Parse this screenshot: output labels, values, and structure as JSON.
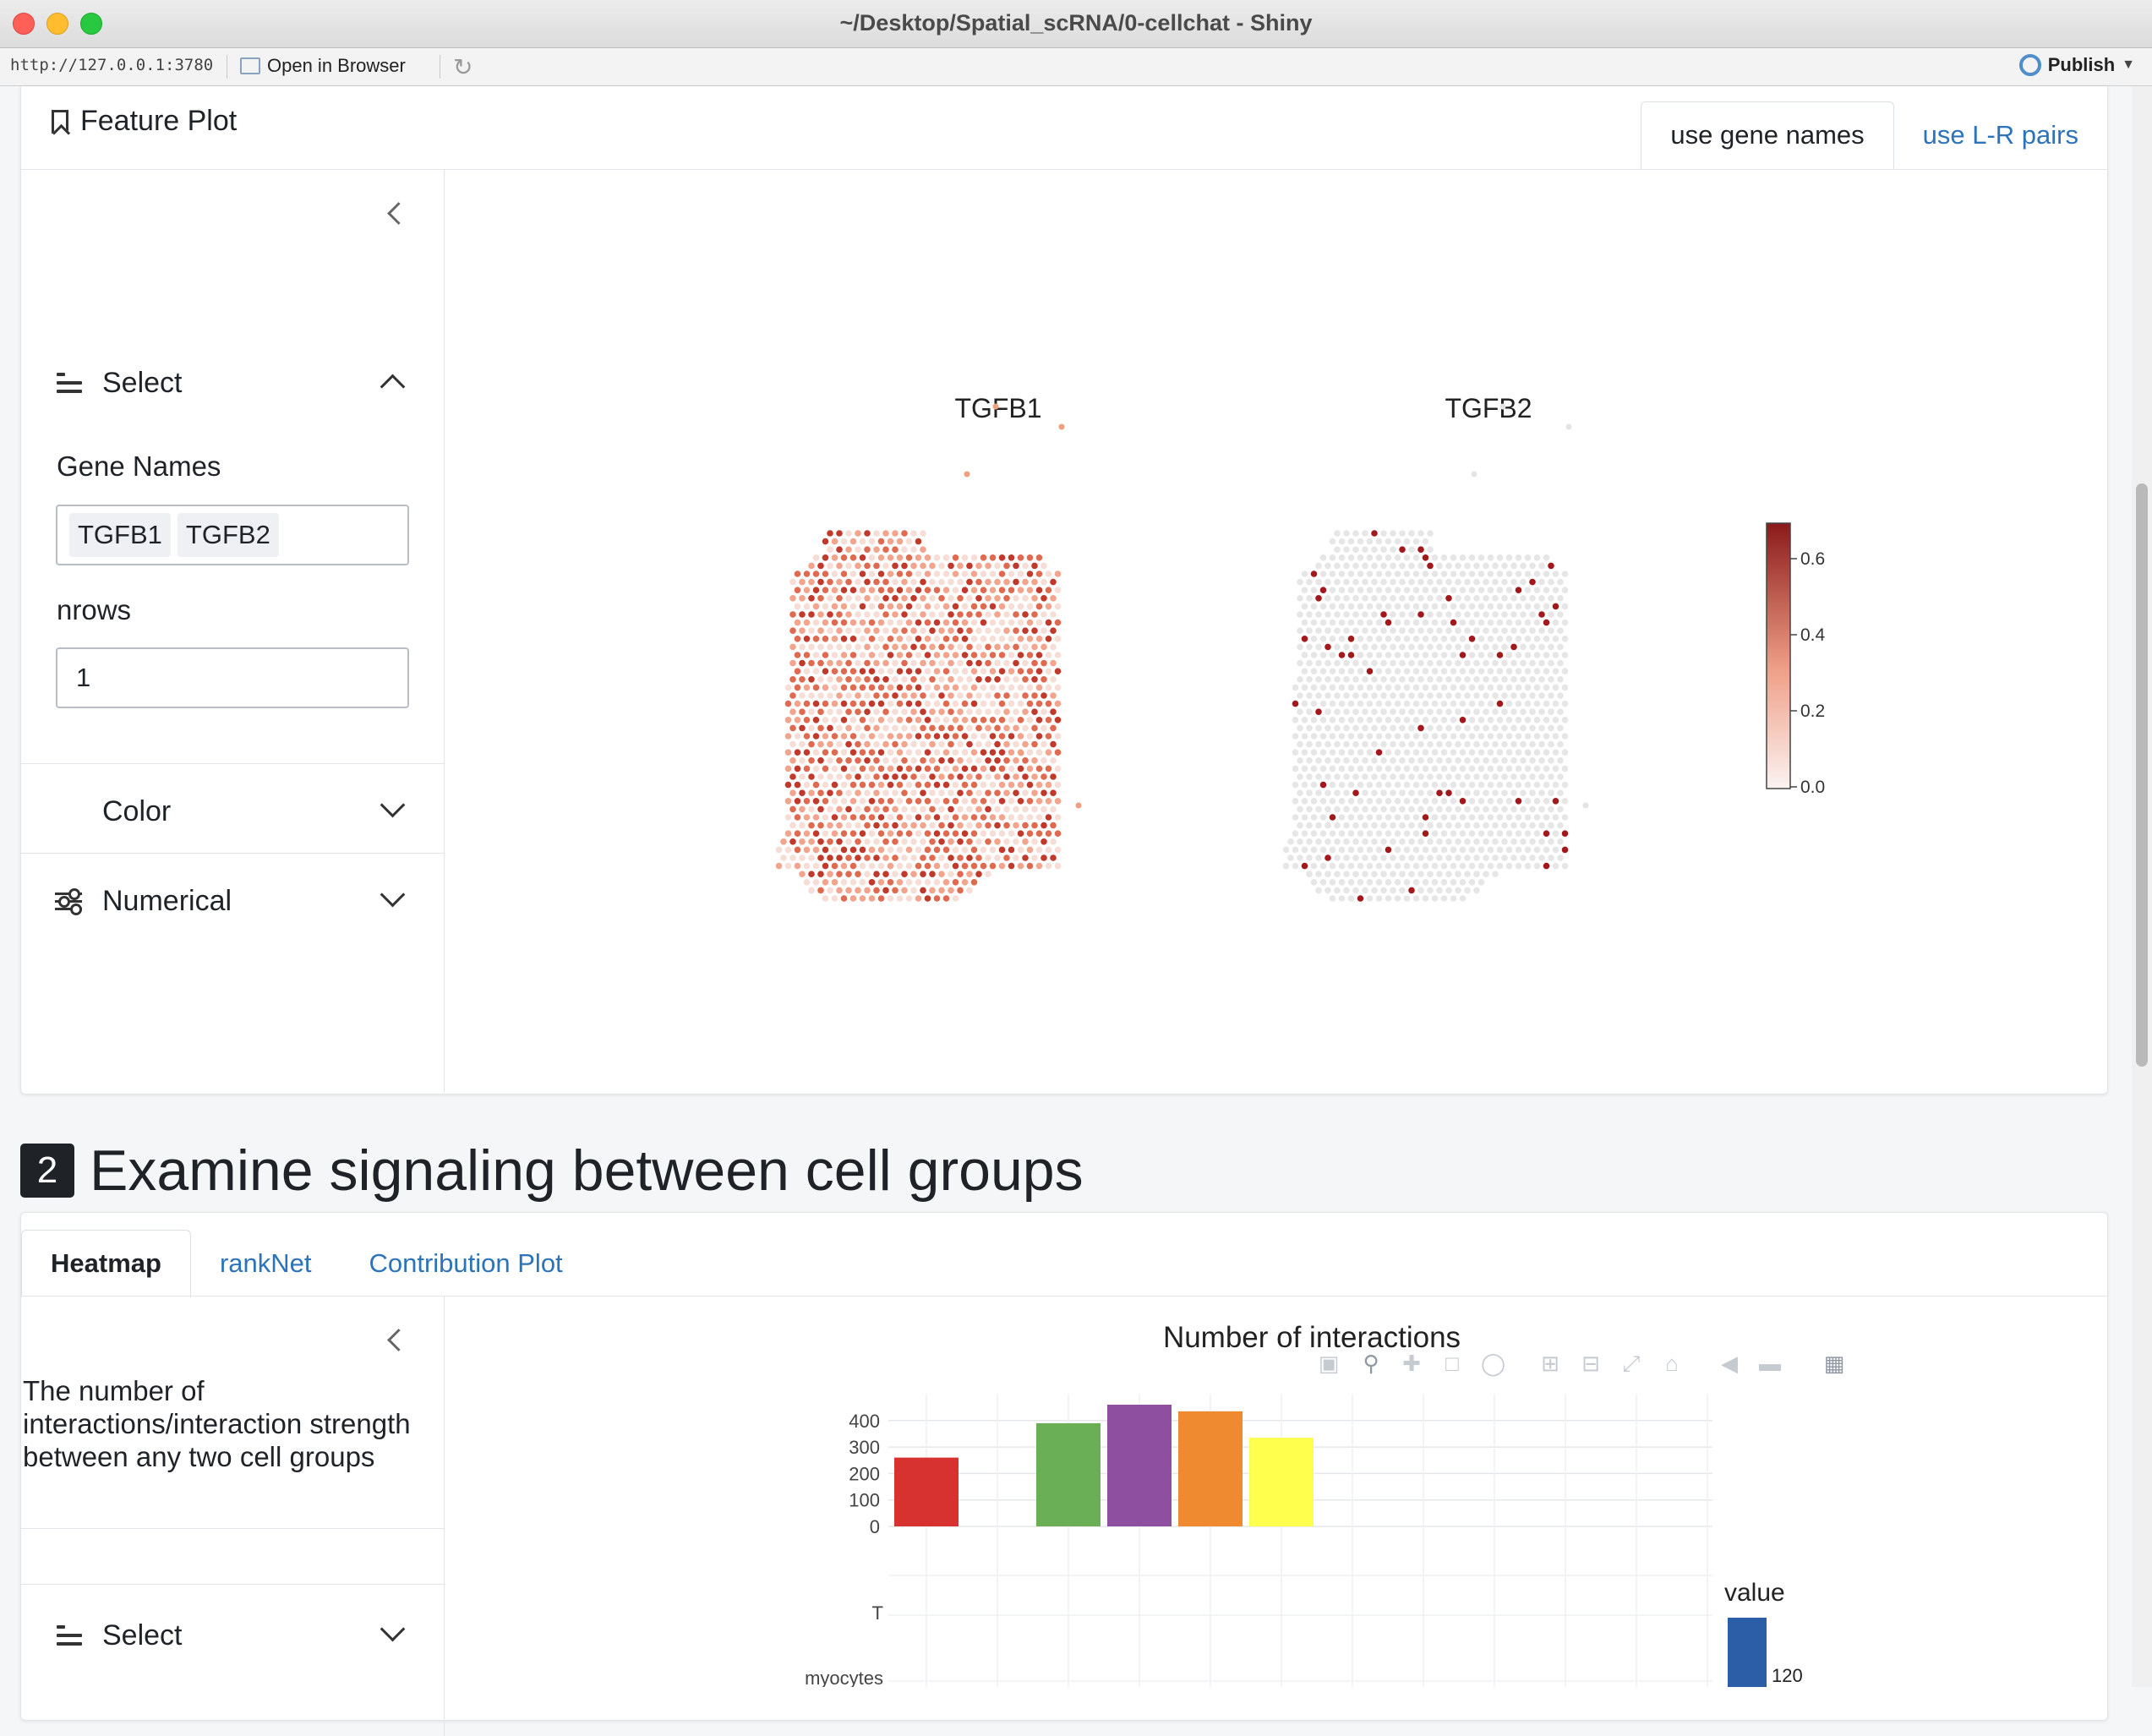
{
  "window": {
    "title": "~/Desktop/Spatial_scRNA/0-cellchat - Shiny"
  },
  "toolbar": {
    "url": "http://127.0.0.1:3780",
    "open_in_browser": "Open in Browser",
    "publish": "Publish"
  },
  "feature_card": {
    "title": "Feature Plot",
    "tabs": [
      {
        "label": "use gene names",
        "active": true
      },
      {
        "label": "use L-R pairs",
        "active": false
      }
    ],
    "sidebar": {
      "select_label": "Select",
      "gene_names_label": "Gene Names",
      "gene_chips": [
        "TGFB1",
        "TGFB2"
      ],
      "nrows_label": "nrows",
      "nrows_value": "1",
      "color_label": "Color",
      "numerical_label": "Numerical"
    },
    "panels": [
      "TGFB1",
      "TGFB2"
    ],
    "colorbar": {
      "ticks": [
        "0.6",
        "0.4",
        "0.2",
        "0.0"
      ],
      "high_color": "#8b1a1a",
      "low_color": "#fbf3f1"
    }
  },
  "section2": {
    "number": "2",
    "title": "Examine signaling between cell groups"
  },
  "heatmap_card": {
    "tabs": [
      {
        "label": "Heatmap",
        "active": true
      },
      {
        "label": "rankNet",
        "active": false
      },
      {
        "label": "Contribution Plot",
        "active": false
      }
    ],
    "description": "The number of interactions/interaction strength between any two cell groups",
    "select_label": "Select",
    "legend_title": "value",
    "legend_tick": "120",
    "y_row_labels": [
      "T",
      "myocytes"
    ]
  },
  "chart_data": {
    "type": "bar",
    "title": "Number of interactions",
    "yticks": [
      0,
      100,
      200,
      300,
      400
    ],
    "ylim": [
      0,
      460
    ],
    "values": [
      260,
      null,
      390,
      460,
      435,
      335
    ],
    "colors": [
      "#d7322f",
      "#cccccc",
      "#6aae56",
      "#8f4fa0",
      "#ef8a30",
      "#ffff4d"
    ]
  }
}
